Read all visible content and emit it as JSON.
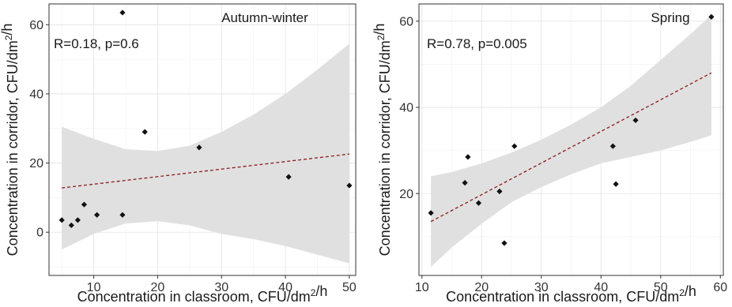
{
  "chart_data": [
    {
      "type": "scatter",
      "title": "",
      "season_label": "Autumn-winter",
      "annotation": "R=0.18, p=0.6",
      "xlabel": "Concentration in classroom, CFU/dm²/h",
      "ylabel": "Concentration in corridor, CFU/dm²/h",
      "xlim": [
        3,
        51
      ],
      "ylim": [
        -12.5,
        66
      ],
      "xticks": [
        10,
        20,
        30,
        40,
        50
      ],
      "yticks": [
        0,
        20,
        40,
        60
      ],
      "grid": true,
      "trend_line": {
        "x": [
          5,
          50
        ],
        "y": [
          12.8,
          22.6
        ],
        "style": "dashed",
        "color": "#8b1a1a"
      },
      "confidence_band": {
        "x": [
          5,
          10,
          15,
          20,
          25,
          30,
          35,
          40,
          45,
          50
        ],
        "upper": [
          30.5,
          27,
          24,
          23.5,
          25,
          29,
          34,
          40,
          47,
          54.5
        ],
        "lower": [
          -5,
          -0.5,
          2.5,
          3.2,
          2,
          -0.5,
          -2,
          -4,
          -6.5,
          -9
        ]
      },
      "points": [
        {
          "x": 5,
          "y": 3.5
        },
        {
          "x": 6.5,
          "y": 2
        },
        {
          "x": 7.5,
          "y": 3.5
        },
        {
          "x": 8.5,
          "y": 8
        },
        {
          "x": 10.5,
          "y": 5
        },
        {
          "x": 14.5,
          "y": 5
        },
        {
          "x": 14.5,
          "y": 63.5
        },
        {
          "x": 18,
          "y": 29
        },
        {
          "x": 26.5,
          "y": 24.5
        },
        {
          "x": 40.5,
          "y": 16
        },
        {
          "x": 50,
          "y": 13.5
        }
      ],
      "colors": {
        "band": "#e0e0e0",
        "point": "#111111",
        "trend": "#8b1a1a"
      }
    },
    {
      "type": "scatter",
      "title": "",
      "season_label": "Spring",
      "annotation": "R=0.78, p=0.005",
      "xlabel": "Concentration in classroom, CFU/dm²/h",
      "ylabel": "Concentration in corridor, CFU/dm²/h",
      "xlim": [
        9.5,
        60.5
      ],
      "ylim": [
        1,
        64
      ],
      "xticks": [
        10,
        20,
        30,
        40,
        50,
        60
      ],
      "yticks": [
        20,
        40,
        60
      ],
      "grid": true,
      "trend_line": {
        "x": [
          11.5,
          58.5
        ],
        "y": [
          13.5,
          48
        ],
        "style": "dashed",
        "color": "#8b1a1a"
      },
      "confidence_band": {
        "x": [
          11.5,
          15,
          20,
          25,
          30,
          35,
          40,
          45,
          50,
          55,
          58.5
        ],
        "upper": [
          24,
          25,
          27,
          29.5,
          32.5,
          36,
          40,
          45,
          51,
          57,
          61.5
        ],
        "lower": [
          3,
          7.5,
          13,
          18,
          21.5,
          24.5,
          27,
          28.5,
          30,
          32,
          33.5
        ]
      },
      "points": [
        {
          "x": 11.5,
          "y": 15.5
        },
        {
          "x": 17.2,
          "y": 22.5
        },
        {
          "x": 17.7,
          "y": 28.5
        },
        {
          "x": 19.5,
          "y": 17.8
        },
        {
          "x": 23,
          "y": 20.5
        },
        {
          "x": 23.8,
          "y": 8.5
        },
        {
          "x": 25.5,
          "y": 31
        },
        {
          "x": 42,
          "y": 31
        },
        {
          "x": 42.5,
          "y": 22.2
        },
        {
          "x": 45.8,
          "y": 37
        },
        {
          "x": 58.5,
          "y": 61
        }
      ],
      "colors": {
        "band": "#e0e0e0",
        "point": "#111111",
        "trend": "#8b1a1a"
      }
    }
  ]
}
